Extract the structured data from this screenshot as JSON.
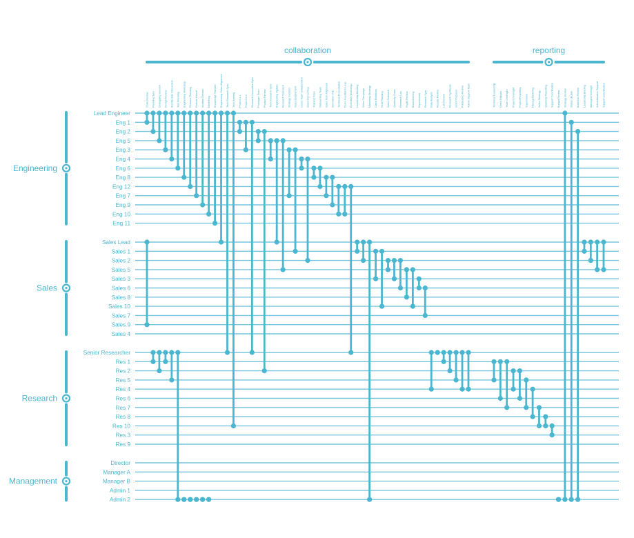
{
  "colors": {
    "accent": "#4bb6d0",
    "line": "#74c6dc"
  },
  "types": [
    {
      "name": "collaboration",
      "columns": [
        "Code Review",
        "Planning Sync",
        "Debugging Session",
        "Design Review",
        "Architecture Discussion",
        "Test Planning",
        "Engineering Workshop",
        "Release Planning",
        "Feature Kickoff",
        "Incident Review",
        "Mentoring",
        "Knowledge Transfer",
        "Engineering Sales Alignment",
        "Tech Research Sync",
        "Tech Briefing",
        "Project X-1",
        "Project X-2",
        "Research Innovation Sync",
        "Prototype Team",
        "Product Review",
        "Tech Research Sync",
        "Engineering Update",
        "Research Outreach",
        "Strategy Session",
        "Sales Enablement",
        "Cross-Team Collaboration",
        "Sales Demo Prep",
        "Training Team",
        "Onboarding Team",
        "Sales Tech Alignment",
        "Innovation Hub",
        "Technical Presentation",
        "Demo Feedback Loop",
        "Executive Workshop",
        "Leadership Meeting",
        "Sales Campaign",
        "Marketing Strategy",
        "Client Relations",
        "Deal Planning",
        "Sales Outreach",
        "Quarterly Goals",
        "Research Lab",
        "Paper Review",
        "Brainstorming",
        "Experiments",
        "Research Sync",
        "Data Analysis",
        "Results Review",
        "Lab Review",
        "Research Synthesis",
        "Grant Proposal",
        "Publication Review",
        "Admin Support Team"
      ]
    },
    {
      "name": "reporting",
      "columns": [
        "Technical Leadership",
        "Direct Reports",
        "Team Oversight",
        "Project Oversight",
        "Project Reporting",
        "Supervision",
        "Manager Briefing",
        "Sales Strategy",
        "Quarterly Reporting",
        "Support Coordination",
        "Budget Review",
        "Strategy Review",
        "Status Update",
        "Business Review",
        "Leadership Briefing",
        "Manager Oversight",
        "Administrative Support",
        "Support Coordination"
      ]
    }
  ],
  "groups": [
    {
      "name": "Engineering",
      "members": [
        "Lead Engineer",
        "Eng 1",
        "Eng 2",
        "Eng 5",
        "Eng 3",
        "Eng 4",
        "Eng 6",
        "Eng 8",
        "Eng 12",
        "Eng 7",
        "Eng 9",
        "Eng 10",
        "Eng 11"
      ]
    },
    {
      "name": "Sales",
      "members": [
        "Sales Lead",
        "Sales 1",
        "Sales 2",
        "Sales 5",
        "Sales 3",
        "Sales 6",
        "Sales 8",
        "Sales 10",
        "Sales 7",
        "Sales 9",
        "Sales 4"
      ]
    },
    {
      "name": "Research",
      "members": [
        "Senior Researcher",
        "Res 1",
        "Res 2",
        "Res 5",
        "Res 4",
        "Res 6",
        "Res 7",
        "Res 8",
        "Res 10",
        "Res 3",
        "Res 9"
      ]
    },
    {
      "name": "Management",
      "members": [
        "Director",
        "Manager A",
        "Manager B",
        "Admin 1",
        "Admin 2"
      ]
    }
  ],
  "links": [
    [
      0,
      1
    ],
    [
      0,
      2
    ],
    [
      0,
      3
    ],
    [
      0,
      4
    ],
    [
      0,
      5
    ],
    [
      0,
      6
    ],
    [
      0,
      7
    ],
    [
      0,
      8
    ],
    [
      0,
      9
    ],
    [
      0,
      10
    ],
    [
      0,
      11
    ],
    [
      0,
      12
    ],
    [
      0,
      13
    ],
    [
      0,
      24
    ],
    [
      0,
      32
    ],
    [
      1,
      2
    ],
    [
      1,
      4
    ],
    [
      1,
      24
    ],
    [
      2,
      3
    ],
    [
      2,
      26
    ],
    [
      3,
      5
    ],
    [
      3,
      13
    ],
    [
      3,
      16
    ],
    [
      4,
      9
    ],
    [
      4,
      14
    ],
    [
      5,
      6
    ],
    [
      5,
      15
    ],
    [
      6,
      7
    ],
    [
      6,
      8
    ],
    [
      7,
      9
    ],
    [
      7,
      10
    ],
    [
      8,
      11
    ],
    [
      8,
      11
    ],
    [
      8,
      24
    ],
    [
      13,
      14
    ],
    [
      13,
      15
    ],
    [
      13,
      56
    ],
    [
      14,
      17
    ],
    [
      14,
      20
    ],
    [
      15,
      16
    ],
    [
      15,
      17
    ],
    [
      15,
      18
    ],
    [
      16,
      19
    ],
    [
      16,
      20
    ],
    [
      17,
      18
    ],
    [
      18,
      21
    ],
    [
      24,
      28
    ],
    [
      24,
      24
    ],
    [
      24,
      25
    ],
    [
      24,
      26
    ],
    [
      24,
      27
    ],
    [
      24,
      28
    ],
    [
      24,
      28
    ],
    [
      25,
      27
    ],
    [
      25,
      29
    ],
    [
      25,
      30
    ],
    [
      26,
      28
    ],
    [
      26,
      29
    ],
    [
      27,
      30
    ],
    [
      28,
      31
    ],
    [
      30,
      32
    ],
    [
      31,
      32
    ],
    [
      32,
      33
    ],
    [
      55,
      56
    ],
    [
      0,
      42
    ],
    [
      1,
      43
    ],
    [
      2,
      43
    ],
    [
      13,
      14
    ],
    [
      13,
      15
    ],
    [
      13,
      16
    ],
    [
      13,
      16
    ],
    [
      13,
      22
    ],
    [
      24,
      25
    ],
    [
      24,
      26
    ],
    [
      24,
      25
    ],
    [
      24,
      27
    ],
    [
      24,
      43
    ],
    [
      42,
      43
    ],
    [
      42,
      44
    ],
    [
      42,
      43
    ],
    [
      42,
      44
    ],
    [
      42,
      46
    ]
  ]
}
